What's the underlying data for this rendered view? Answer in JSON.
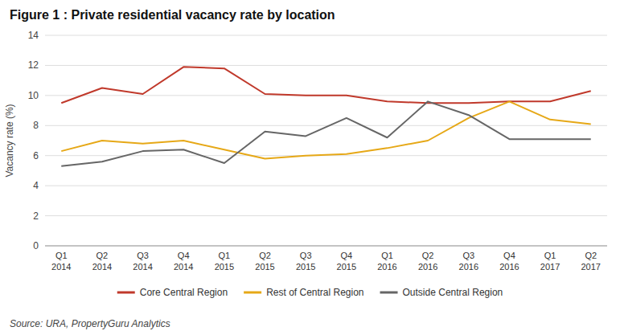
{
  "chart_data": {
    "type": "line",
    "title": "Figure 1 : Private residential vacancy rate by location",
    "y_label": "Vacancy rate (%)",
    "annotations": [
      "Source: URA, PropertyGuru Analytics"
    ],
    "categories": [
      "Q1\n2014",
      "Q2\n2014",
      "Q3\n2014",
      "Q4\n2014",
      "Q1\n2015",
      "Q2\n2015",
      "Q3\n2015",
      "Q4\n2015",
      "Q1\n2016",
      "Q2\n2016",
      "Q3\n2016",
      "Q4\n2016",
      "Q1\n2017",
      "Q2\n2017"
    ],
    "series": [
      {
        "name": "Core Central Region",
        "color": "#c0392b",
        "values": [
          9.5,
          10.5,
          10.1,
          11.9,
          11.8,
          10.1,
          10.0,
          10.0,
          9.6,
          9.5,
          9.5,
          9.6,
          9.6,
          10.3
        ]
      },
      {
        "name": "Rest of Central Region",
        "color": "#e6a817",
        "values": [
          6.3,
          7.0,
          6.8,
          7.0,
          6.4,
          5.8,
          6.0,
          6.1,
          6.5,
          7.0,
          8.5,
          9.6,
          8.4,
          8.1
        ]
      },
      {
        "name": "Outside Central Region",
        "color": "#666666",
        "values": [
          5.3,
          5.6,
          6.3,
          6.4,
          5.5,
          7.6,
          7.3,
          8.5,
          7.2,
          9.6,
          8.7,
          7.1,
          7.1,
          7.1
        ]
      }
    ],
    "ylim": [
      0,
      14
    ],
    "yticks": [
      0,
      2,
      4,
      6,
      8,
      10,
      12,
      14
    ],
    "grid": true,
    "legend": "bottom"
  }
}
